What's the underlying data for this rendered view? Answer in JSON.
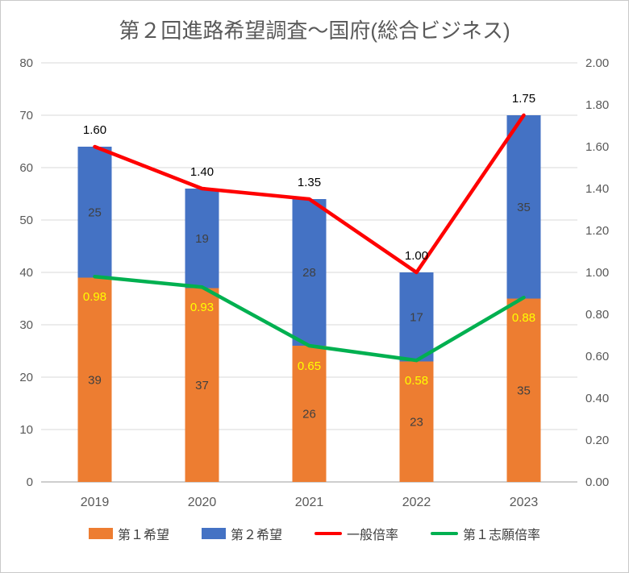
{
  "chart_data": {
    "type": "bar",
    "subtype": "stacked-bar-with-lines",
    "title": "第２回進路希望調査～国府(総合ビジネス)",
    "categories": [
      "2019",
      "2020",
      "2021",
      "2022",
      "2023"
    ],
    "series": [
      {
        "name": "第１希望",
        "type": "bar",
        "axis": "left",
        "color": "#ED7D31",
        "values": [
          39,
          37,
          26,
          23,
          35
        ],
        "labels": [
          "39",
          "37",
          "26",
          "23",
          "35"
        ],
        "label_color": "#404040"
      },
      {
        "name": "第２希望",
        "type": "bar",
        "axis": "left",
        "color": "#4472C4",
        "values": [
          25,
          19,
          28,
          17,
          35
        ],
        "labels": [
          "25",
          "19",
          "28",
          "17",
          "35"
        ],
        "label_color": "#404040"
      },
      {
        "name": "一般倍率",
        "type": "line",
        "axis": "right",
        "color": "#FF0000",
        "values": [
          1.6,
          1.4,
          1.35,
          1.0,
          1.75
        ],
        "labels": [
          "1.60",
          "1.40",
          "1.35",
          "1.00",
          "1.75"
        ],
        "label_color": "#000000",
        "label_position": "above"
      },
      {
        "name": "第１志願倍率",
        "type": "line",
        "axis": "right",
        "color": "#00B050",
        "values": [
          0.98,
          0.93,
          0.65,
          0.58,
          0.88
        ],
        "labels": [
          "0.98",
          "0.93",
          "0.65",
          "0.58",
          "0.88"
        ],
        "label_color": "#FFFF00",
        "label_position": "below"
      }
    ],
    "left_axis": {
      "min": 0,
      "max": 80,
      "step": 10,
      "ticks": [
        "0",
        "10",
        "20",
        "30",
        "40",
        "50",
        "60",
        "70",
        "80"
      ]
    },
    "right_axis": {
      "min": 0,
      "max": 2,
      "step": 0.2,
      "ticks": [
        "0.00",
        "0.20",
        "0.40",
        "0.60",
        "0.80",
        "1.00",
        "1.20",
        "1.40",
        "1.60",
        "1.80",
        "2.00"
      ]
    },
    "grid": true,
    "legend_position": "bottom",
    "colors": {
      "gridline": "#D9D9D9",
      "axis_line": "#9E9E9E",
      "axis_text": "#595959",
      "title_text": "#595959"
    }
  }
}
